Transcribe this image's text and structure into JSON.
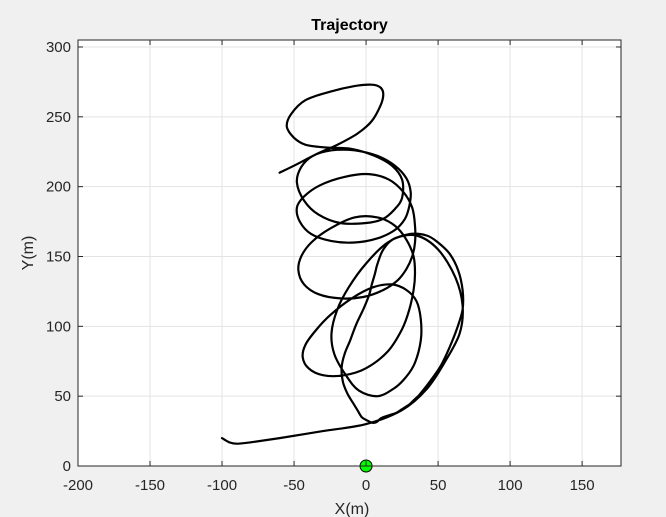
{
  "chart_data": {
    "type": "line",
    "title": "Trajectory",
    "xlabel": "X(m)",
    "ylabel": "Y(m)",
    "xlim": [
      -200,
      177
    ],
    "ylim": [
      0,
      305
    ],
    "xticks": [
      -200,
      -150,
      -100,
      -50,
      0,
      50,
      100,
      150
    ],
    "yticks": [
      0,
      50,
      100,
      150,
      200,
      250,
      300
    ],
    "xtick_labels": [
      "-200",
      "-150",
      "-100",
      "-50",
      "0",
      "50",
      "100",
      "150"
    ],
    "ytick_labels": [
      "0",
      "50",
      "100",
      "150",
      "200",
      "250",
      "300"
    ],
    "grid": true,
    "line_color": "#000000",
    "marker_color": "#00ff00",
    "start_marker": {
      "x": 0,
      "y": 0
    },
    "series": [
      {
        "x": [
          -100,
          -95,
          -90,
          -80,
          -60,
          -30,
          0,
          25,
          42,
          55,
          65,
          67,
          62,
          50,
          35,
          20,
          12,
          8,
          6,
          4,
          2,
          -2,
          -7,
          -11,
          -15,
          -17,
          -16,
          -13,
          -9,
          -6,
          -3,
          0,
          2,
          4,
          6,
          8,
          9,
          10,
          12,
          15,
          18,
          21,
          24,
          27,
          30,
          33,
          37,
          44,
          52,
          58,
          63,
          67,
          67,
          64,
          58,
          50,
          42,
          30,
          15,
          0,
          -12,
          -20,
          -24,
          -22,
          -14,
          -5,
          8,
          20,
          28,
          34,
          38,
          38,
          35,
          28,
          18,
          5,
          -10,
          -25,
          -35,
          -42,
          -44,
          -40,
          -30,
          -15,
          0,
          15,
          25,
          30,
          33,
          34,
          33,
          28,
          20,
          8,
          -8,
          -25,
          -38,
          -45,
          -47,
          -43,
          -33,
          -18,
          -2,
          12,
          22,
          28,
          32,
          34,
          34,
          32,
          26,
          16,
          2,
          -15,
          -32,
          -43,
          -48,
          -46,
          -38,
          -24,
          -8,
          8,
          20,
          27,
          30,
          31,
          28,
          20,
          8,
          -8,
          -24,
          -37,
          -45,
          -48,
          -43,
          -33,
          -18,
          0,
          12,
          20,
          25,
          25,
          18,
          6,
          -10,
          -28,
          -42,
          -50,
          -55,
          -52,
          -42,
          -25,
          -8,
          4,
          10,
          12,
          10,
          4,
          -6,
          -20,
          -35,
          -50,
          -60
        ],
        "y": [
          20,
          17,
          16,
          17,
          20,
          25,
          30,
          40,
          55,
          75,
          95,
          115,
          135,
          155,
          165,
          163,
          155,
          145,
          137,
          130,
          122,
          112,
          101,
          90,
          80,
          70,
          60,
          52,
          45,
          40,
          35,
          33,
          32,
          31,
          31,
          32,
          33,
          34,
          35,
          36,
          37,
          38,
          40,
          42,
          44,
          47,
          51,
          60,
          72,
          85,
          98,
          112,
          126,
          140,
          152,
          160,
          165,
          166,
          160,
          145,
          128,
          112,
          95,
          80,
          65,
          54,
          50,
          56,
          64,
          74,
          90,
          105,
          118,
          126,
          130,
          128,
          120,
          108,
          97,
          87,
          78,
          70,
          65,
          65,
          70,
          82,
          98,
          112,
          126,
          138,
          150,
          162,
          172,
          178,
          178,
          170,
          160,
          150,
          140,
          130,
          123,
          120,
          121,
          126,
          133,
          141,
          150,
          160,
          172,
          185,
          196,
          205,
          209,
          207,
          201,
          193,
          185,
          175,
          166,
          161,
          160,
          163,
          169,
          177,
          186,
          196,
          206,
          215,
          222,
          226,
          226,
          222,
          214,
          203,
          190,
          180,
          174,
          174,
          177,
          184,
          192,
          205,
          215,
          222,
          227,
          228,
          230,
          235,
          243,
          252,
          262,
          268,
          272,
          273,
          271,
          266,
          258,
          247,
          238,
          230,
          223,
          215,
          210
        ]
      }
    ]
  }
}
